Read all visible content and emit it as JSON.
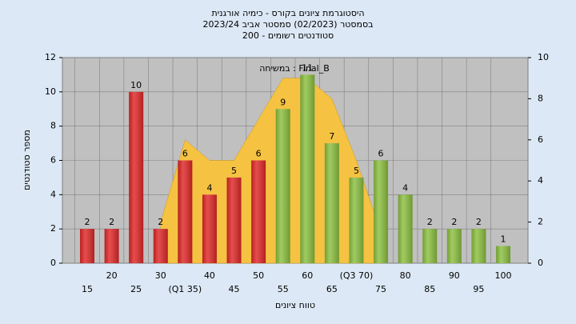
{
  "chart_data": {
    "type": "bar",
    "title": [
      "היסטוגרמת ציונים בקורס - כימיה אורגנית",
      "בסמסטר  (02/2023)  סמסטר אביב 2023/24",
      "סטודנטים רשומים - 200"
    ],
    "x_label": "טווח ציונים",
    "y_label": "מספר סטודנטים",
    "categories": [
      "15",
      "20",
      "25",
      "30",
      "(Q1 35)",
      "40",
      "45",
      "50",
      "55",
      "60",
      "65",
      "(Q3 70)",
      "75",
      "80",
      "85",
      "90",
      "95",
      "100"
    ],
    "values": [
      2,
      2,
      10,
      2,
      6,
      4,
      5,
      6,
      9,
      11,
      7,
      5,
      6,
      4,
      2,
      2,
      2,
      1
    ],
    "colors": [
      "#e02828",
      "#e02828",
      "#e02828",
      "#e02828",
      "#e02828",
      "#e02828",
      "#e02828",
      "#e02828",
      "#8cc040",
      "#8cc040",
      "#8cc040",
      "#8cc040",
      "#8cc040",
      "#8cc040",
      "#8cc040",
      "#8cc040",
      "#8cc040",
      "#8cc040"
    ],
    "area": {
      "name": "במשיחה : Final_B",
      "color": "#f5c242",
      "axis": "y2",
      "values": [
        null,
        null,
        null,
        2,
        6,
        5,
        5,
        7,
        9,
        9,
        8,
        5,
        1.5,
        null,
        null,
        null,
        null,
        null
      ]
    },
    "ylim": [
      0,
      12
    ],
    "yticks": [
      0,
      2,
      4,
      6,
      8,
      10,
      12
    ],
    "y2lim": [
      0,
      10
    ],
    "y2ticks": [
      0,
      2,
      4,
      6,
      8,
      10
    ],
    "grid": true
  }
}
